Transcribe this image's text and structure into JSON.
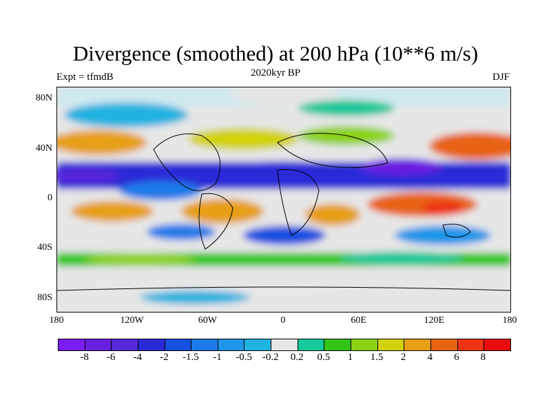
{
  "title": "Divergence (smoothed) at 200 hPa (10**6 m/s)",
  "subtitle": "2020kyr BP",
  "left_label": "Expt = tfmdB",
  "right_label": "DJF",
  "chart_data": {
    "type": "heatmap",
    "projection": "cylindrical-equidistant",
    "variable": "Divergence (smoothed) at 200 hPa",
    "units": "10**6 m/s",
    "lat_range": [
      -90,
      90
    ],
    "lon_range": [
      -180,
      180
    ],
    "y_tick_labels": [
      "80N",
      "40N",
      "0",
      "40S",
      "80S"
    ],
    "y_tick_values": [
      80,
      40,
      0,
      -40,
      -80
    ],
    "x_tick_labels": [
      "180",
      "120W",
      "60W",
      "0",
      "60E",
      "120E",
      "180"
    ],
    "x_tick_values": [
      -180,
      -120,
      -60,
      0,
      60,
      120,
      180
    ],
    "colorbar": {
      "levels": [
        "-8",
        "-6",
        "-4",
        "-2",
        "-1.5",
        "-1",
        "-0.5",
        "-0.2",
        "0.2",
        "0.5",
        "1",
        "1.5",
        "2",
        "4",
        "6",
        "8"
      ],
      "colors": [
        "#7a1cf0",
        "#6a1ee0",
        "#5528d8",
        "#2a2ad8",
        "#1550e0",
        "#1e7ae8",
        "#1e96ea",
        "#20b2e0",
        "#e6e6e6",
        "#16c89a",
        "#33c418",
        "#8cd214",
        "#d2d20c",
        "#e69f17",
        "#e86412",
        "#ee3214",
        "#ea0c0c"
      ]
    },
    "zonal_bands": [
      {
        "lat": [
          70,
          90
        ],
        "level": "-0.5 to 0.2",
        "description": "mixed near-zero / weak convergence"
      },
      {
        "lat": [
          45,
          60
        ],
        "level": "0.5 to 4",
        "description": "divergence over N Atlantic and N Pacific storm tracks"
      },
      {
        "lat": [
          15,
          35
        ],
        "level": "-2 to -6",
        "description": "strong subtropical convergence band"
      },
      {
        "lat": [
          -25,
          5
        ],
        "level": "1 to 6",
        "description": "tropical divergence over S America, Africa, Maritime Continent"
      },
      {
        "lat": [
          -40,
          -28
        ],
        "level": "-1 to -4",
        "description": "southern subtropical convergence"
      },
      {
        "lat": [
          -60,
          -45
        ],
        "level": "0.5 to 2",
        "description": "southern storm-track divergence"
      },
      {
        "lat": [
          -90,
          -65
        ],
        "level": "-0.2 to 0.2",
        "description": "near zero over Antarctica"
      }
    ]
  }
}
